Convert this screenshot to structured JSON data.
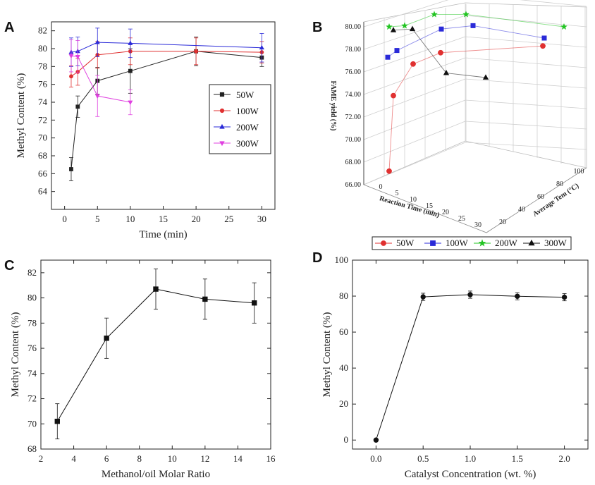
{
  "panels": {
    "A": "A",
    "B": "B",
    "C": "C",
    "D": "D"
  },
  "chart_data": [
    {
      "panel": "A",
      "type": "line",
      "title": "",
      "xlabel": "Time (min)",
      "ylabel": "Methyl Content (%)",
      "xlim": [
        -2,
        32
      ],
      "ylim": [
        62,
        83
      ],
      "xticks": [
        0,
        5,
        10,
        15,
        20,
        25,
        30
      ],
      "yticks": [
        64,
        66,
        68,
        70,
        72,
        74,
        76,
        78,
        80,
        82
      ],
      "legend_position": "center-right",
      "series": [
        {
          "name": "50W",
          "color": "#222222",
          "marker": "square",
          "x": [
            1,
            2,
            5,
            10,
            20,
            30
          ],
          "y": [
            66.5,
            73.5,
            76.4,
            77.5,
            79.7,
            79.0
          ],
          "err": [
            1.3,
            1.2,
            1.5,
            2.5,
            1.6,
            1.0
          ]
        },
        {
          "name": "100W",
          "color": "#e03030",
          "marker": "circle",
          "x": [
            1,
            2,
            5,
            10,
            20,
            30
          ],
          "y": [
            76.9,
            77.4,
            79.3,
            79.7,
            79.7,
            79.6
          ],
          "err": [
            1.2,
            1.5,
            1.5,
            1.5,
            1.5,
            1.2
          ]
        },
        {
          "name": "200W",
          "color": "#2a2ad8",
          "marker": "triangle-up",
          "x": [
            1,
            2,
            5,
            10,
            30
          ],
          "y": [
            79.6,
            79.7,
            80.7,
            80.6,
            80.1
          ],
          "err": [
            1.6,
            1.6,
            1.6,
            1.6,
            1.6
          ]
        },
        {
          "name": "300W",
          "color": "#e040e0",
          "marker": "triangle-down",
          "x": [
            1,
            2,
            5,
            10
          ],
          "y": [
            79.2,
            79.1,
            74.7,
            74.0
          ],
          "err": [
            1.8,
            1.8,
            2.3,
            1.4
          ]
        }
      ]
    },
    {
      "panel": "B",
      "type": "scatter3d",
      "zlabel": "FAME yield (%)",
      "xlabel": "Reaction Time (min)",
      "ylabel": "Average Tem (°C)",
      "zticks": [
        "66.00",
        "68.00",
        "70.00",
        "72.00",
        "74.00",
        "76.00",
        "78.00",
        "80.00"
      ],
      "xticks": [
        "0",
        "5",
        "10",
        "15",
        "20",
        "25",
        "30"
      ],
      "yticks": [
        "20",
        "40",
        "60",
        "80",
        "100"
      ],
      "legend_position": "bottom",
      "series": [
        {
          "name": "50W",
          "color": "#e03030",
          "marker": "circle",
          "y": [
            67.2,
            73.9,
            76.7,
            77.7,
            78.3
          ]
        },
        {
          "name": "100W",
          "color": "#2a2ad8",
          "marker": "square",
          "y": [
            77.3,
            77.9,
            79.8,
            80.1,
            79.0
          ]
        },
        {
          "name": "200W",
          "color": "#22c422",
          "marker": "star",
          "y": [
            80.0,
            80.1,
            81.1,
            81.1,
            80.0
          ]
        },
        {
          "name": "300W",
          "color": "#111111",
          "marker": "triangle-up",
          "y": [
            79.7,
            79.8,
            75.9,
            75.5
          ]
        }
      ]
    },
    {
      "panel": "C",
      "type": "line",
      "xlabel": "Methanol/oil Molar Ratio",
      "ylabel": "Methyl Content (%)",
      "xlim": [
        2,
        16
      ],
      "ylim": [
        68,
        83
      ],
      "xticks": [
        2,
        4,
        6,
        8,
        10,
        12,
        14,
        16
      ],
      "yticks": [
        68,
        70,
        72,
        74,
        76,
        78,
        80,
        82
      ],
      "series": [
        {
          "name": "Methyl Content",
          "color": "#111111",
          "marker": "square",
          "x": [
            3,
            6,
            9,
            12,
            15
          ],
          "y": [
            70.2,
            76.8,
            80.7,
            79.9,
            79.6
          ],
          "err": [
            1.4,
            1.6,
            1.6,
            1.6,
            1.6
          ]
        }
      ]
    },
    {
      "panel": "D",
      "type": "line",
      "xlabel": "Catalyst Concentration (wt. %)",
      "ylabel": "Methyl Content (%)",
      "xlim": [
        -0.25,
        2.25
      ],
      "ylim": [
        -5,
        100
      ],
      "xticks": [
        "0.0",
        "0.5",
        "1.0",
        "1.5",
        "2.0"
      ],
      "yticks": [
        0,
        20,
        40,
        60,
        80,
        100
      ],
      "series": [
        {
          "name": "Methyl Content",
          "color": "#111111",
          "marker": "circle",
          "x": [
            0,
            0.5,
            1.0,
            1.5,
            2.0
          ],
          "y": [
            0,
            79.6,
            80.8,
            79.9,
            79.4
          ],
          "err": [
            0,
            2,
            2,
            2,
            2
          ]
        }
      ]
    }
  ]
}
